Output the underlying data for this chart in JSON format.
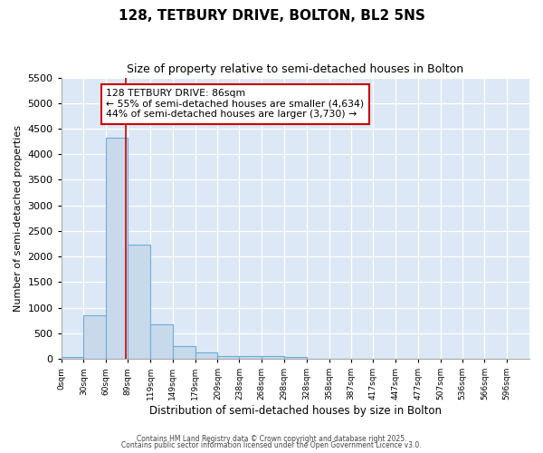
{
  "title": "128, TETBURY DRIVE, BOLTON, BL2 5NS",
  "subtitle": "Size of property relative to semi-detached houses in Bolton",
  "xlabel": "Distribution of semi-detached houses by size in Bolton",
  "ylabel": "Number of semi-detached properties",
  "bin_labels": [
    "0sqm",
    "30sqm",
    "60sqm",
    "89sqm",
    "119sqm",
    "149sqm",
    "179sqm",
    "209sqm",
    "238sqm",
    "268sqm",
    "298sqm",
    "328sqm",
    "358sqm",
    "387sqm",
    "417sqm",
    "447sqm",
    "477sqm",
    "507sqm",
    "536sqm",
    "566sqm",
    "596sqm"
  ],
  "bin_edges": [
    0,
    30,
    60,
    89,
    119,
    149,
    179,
    209,
    238,
    268,
    298,
    328,
    358,
    387,
    417,
    447,
    477,
    507,
    536,
    566,
    596
  ],
  "bar_values": [
    30,
    850,
    4320,
    2240,
    680,
    250,
    120,
    60,
    55,
    50,
    40,
    0,
    0,
    0,
    0,
    0,
    0,
    0,
    0,
    0
  ],
  "bar_color": "#c9d9ec",
  "bar_edge_color": "#6aaed6",
  "property_size": 86,
  "red_line_color": "#cc0000",
  "annotation_line1": "128 TETBURY DRIVE: 86sqm",
  "annotation_line2": "← 55% of semi-detached houses are smaller (4,634)",
  "annotation_line3": "44% of semi-detached houses are larger (3,730) →",
  "annotation_box_color": "#ffffff",
  "annotation_box_edge": "#cc0000",
  "ylim": [
    0,
    5500
  ],
  "yticks": [
    0,
    500,
    1000,
    1500,
    2000,
    2500,
    3000,
    3500,
    4000,
    4500,
    5000,
    5500
  ],
  "background_color": "#ffffff",
  "plot_bg_color": "#dce8f5",
  "grid_color": "#ffffff",
  "footer_line1": "Contains HM Land Registry data © Crown copyright and database right 2025.",
  "footer_line2": "Contains public sector information licensed under the Open Government Licence v3.0."
}
